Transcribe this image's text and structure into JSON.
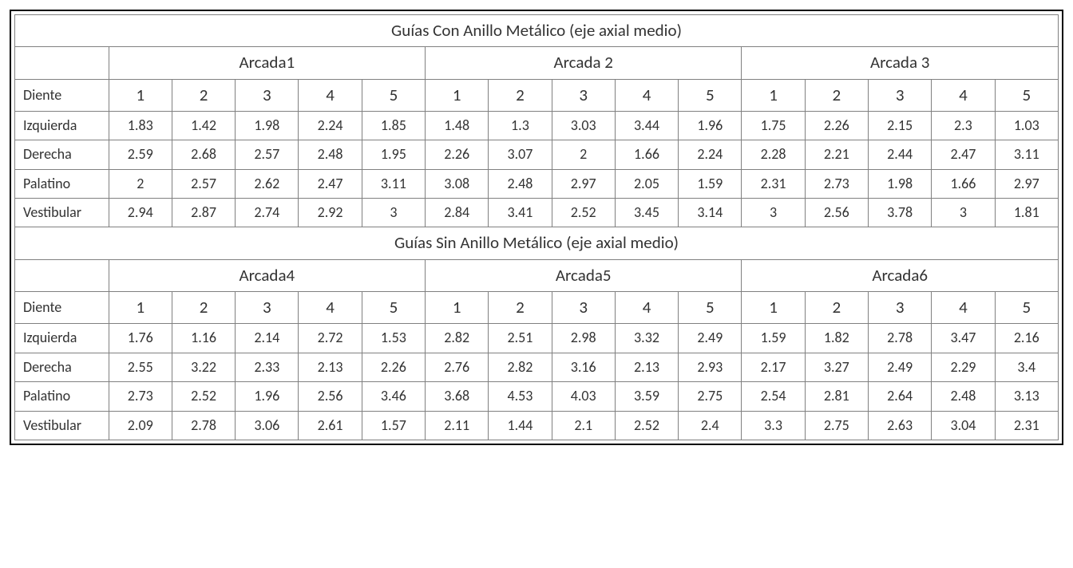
{
  "colors": {
    "border_outer": "#000000",
    "border_cell": "#808080",
    "text": "#333333",
    "background": "#ffffff"
  },
  "typography": {
    "font_family": "Calibri, Arial, sans-serif",
    "title_fontsize_pt": 16,
    "group_fontsize_pt": 16,
    "numheader_fontsize_pt": 16,
    "cell_fontsize_pt": 13
  },
  "sections": [
    {
      "title": "Guías Con Anillo Metálico (eje axial medio)",
      "groups": [
        "Arcada1",
        "Arcada 2",
        "Arcada 3"
      ],
      "row_header": "Diente",
      "num_headers": [
        "1",
        "2",
        "3",
        "4",
        "5",
        "1",
        "2",
        "3",
        "4",
        "5",
        "1",
        "2",
        "3",
        "4",
        "5"
      ],
      "rows": [
        {
          "label": "Izquierda",
          "values": [
            "1.83",
            "1.42",
            "1.98",
            "2.24",
            "1.85",
            "1.48",
            "1.3",
            "3.03",
            "3.44",
            "1.96",
            "1.75",
            "2.26",
            "2.15",
            "2.3",
            "1.03"
          ]
        },
        {
          "label": "Derecha",
          "values": [
            "2.59",
            "2.68",
            "2.57",
            "2.48",
            "1.95",
            "2.26",
            "3.07",
            "2",
            "1.66",
            "2.24",
            "2.28",
            "2.21",
            "2.44",
            "2.47",
            "3.11"
          ]
        },
        {
          "label": "Palatino",
          "values": [
            "2",
            "2.57",
            "2.62",
            "2.47",
            "3.11",
            "3.08",
            "2.48",
            "2.97",
            "2.05",
            "1.59",
            "2.31",
            "2.73",
            "1.98",
            "1.66",
            "2.97"
          ]
        },
        {
          "label": "Vestibular",
          "values": [
            "2.94",
            "2.87",
            "2.74",
            "2.92",
            "3",
            "2.84",
            "3.41",
            "2.52",
            "3.45",
            "3.14",
            "3",
            "2.56",
            "3.78",
            "3",
            "1.81"
          ]
        }
      ]
    },
    {
      "title": "Guías Sin Anillo Metálico (eje axial medio)",
      "groups": [
        "Arcada4",
        "Arcada5",
        "Arcada6"
      ],
      "row_header": "Diente",
      "num_headers": [
        "1",
        "2",
        "3",
        "4",
        "5",
        "1",
        "2",
        "3",
        "4",
        "5",
        "1",
        "2",
        "3",
        "4",
        "5"
      ],
      "rows": [
        {
          "label": "Izquierda",
          "values": [
            "1.76",
            "1.16",
            "2.14",
            "2.72",
            "1.53",
            "2.82",
            "2.51",
            "2.98",
            "3.32",
            "2.49",
            "1.59",
            "1.82",
            "2.78",
            "3.47",
            "2.16"
          ]
        },
        {
          "label": "Derecha",
          "values": [
            "2.55",
            "3.22",
            "2.33",
            "2.13",
            "2.26",
            "2.76",
            "2.82",
            "3.16",
            "2.13",
            "2.93",
            "2.17",
            "3.27",
            "2.49",
            "2.29",
            "3.4"
          ]
        },
        {
          "label": "Palatino",
          "values": [
            "2.73",
            "2.52",
            "1.96",
            "2.56",
            "3.46",
            "3.68",
            "4.53",
            "4.03",
            "3.59",
            "2.75",
            "2.54",
            "2.81",
            "2.64",
            "2.48",
            "3.13"
          ]
        },
        {
          "label": "Vestibular",
          "values": [
            "2.09",
            "2.78",
            "3.06",
            "2.61",
            "1.57",
            "2.11",
            "1.44",
            "2.1",
            "2.52",
            "2.4",
            "3.3",
            "2.75",
            "2.63",
            "3.04",
            "2.31"
          ]
        }
      ]
    }
  ]
}
